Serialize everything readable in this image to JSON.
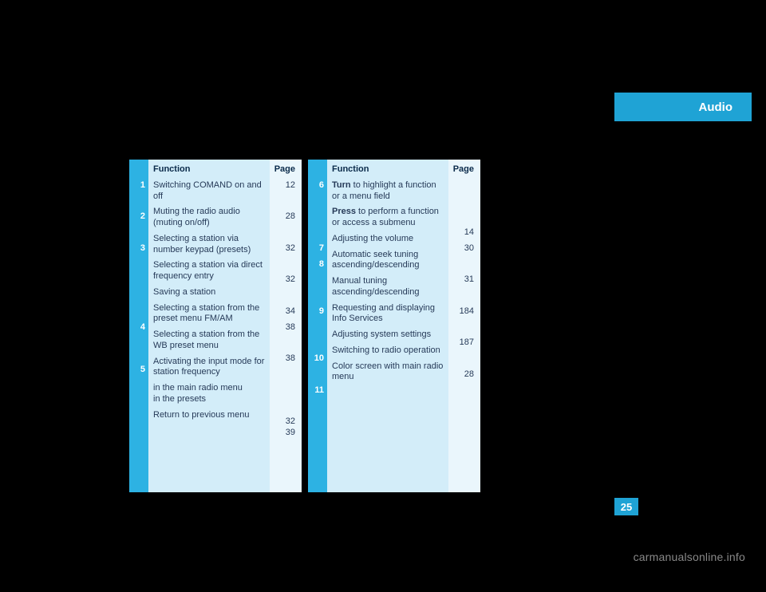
{
  "tab_label": "Audio",
  "page_number": "25",
  "watermark": "carmanualsonline.info",
  "left_table": {
    "header_function": "Function",
    "header_page": "Page",
    "rows": [
      {
        "n": "1",
        "func": "Switching COMAND on and off",
        "page": "12"
      },
      {
        "n": "2",
        "func": "Muting the radio audio (muting on/off)",
        "page": "28"
      },
      {
        "n": "3",
        "func": "Selecting a station via number keypad (presets)",
        "page": "32"
      },
      {
        "n": "",
        "func": "Selecting a station via direct frequency entry",
        "page": "32"
      },
      {
        "n": "",
        "func": "Saving a station",
        "page": "34"
      },
      {
        "n": "",
        "func": "Selecting a station from the preset menu FM/AM",
        "page": "38"
      },
      {
        "n": "",
        "func": "Selecting a station from the WB preset menu",
        "page": "38"
      },
      {
        "n": "4",
        "func": "Activating the input mode for station frequency",
        "page": ""
      },
      {
        "n": "",
        "func": "in the main radio menu",
        "page": "32"
      },
      {
        "n": "",
        "func": "in the presets",
        "page": "39"
      },
      {
        "n": "5",
        "func": "Return to previous menu",
        "page": ""
      }
    ]
  },
  "right_table": {
    "header_function": "Function",
    "header_page": "Page",
    "rows": [
      {
        "n": "6",
        "func_html": "<span class=\"bold\">Turn</span> to highlight a function or a menu field",
        "page": ""
      },
      {
        "n": "",
        "func_html": "<span class=\"bold\">Press</span> to perform a function or access a submenu",
        "page": ""
      },
      {
        "n": "7",
        "func": "Adjusting the volume",
        "page": "14"
      },
      {
        "n": "8",
        "func": "Automatic seek tuning ascending/descending",
        "page": "30"
      },
      {
        "n": "",
        "func": "Manual tuning ascending/descending",
        "page": "31"
      },
      {
        "n": "9",
        "func": "Requesting and displaying Info Services",
        "page": "184"
      },
      {
        "n": "",
        "func": "Adjusting system settings",
        "page": "187"
      },
      {
        "n": "10",
        "func": "Switching to radio operation",
        "page": "28"
      },
      {
        "n": "11",
        "func": "Color screen with main radio menu",
        "page": ""
      }
    ]
  },
  "colors": {
    "tab_bg": "#1fa3d5",
    "col_num_bg": "#2db2e3",
    "col_func_bg": "#d3edf9",
    "col_page_bg": "#eaf6fc",
    "text": "#263a58"
  }
}
